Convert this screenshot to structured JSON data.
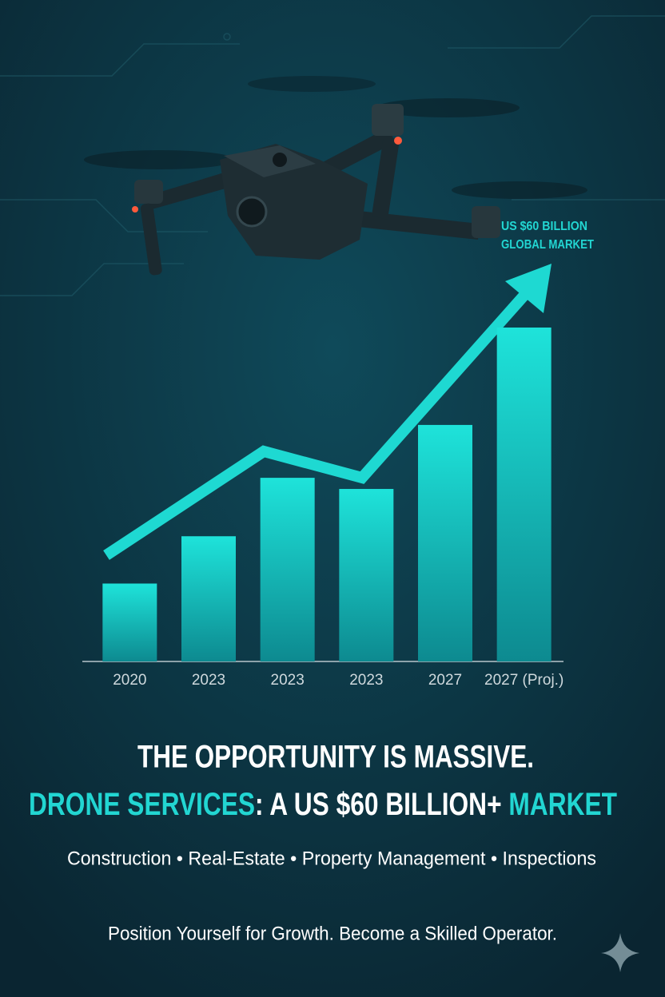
{
  "chart_data": {
    "type": "bar",
    "annotation": [
      "US $60 BILLION",
      "GLOBAL MARKET"
    ],
    "categories": [
      "2020",
      "2023",
      "2023",
      "2023",
      "2027",
      "2027 (Proj.)"
    ],
    "values": [
      14,
      22.5,
      33,
      31,
      42.5,
      60
    ],
    "color": "#1ed9d2",
    "ylim": [
      0,
      60
    ]
  },
  "headline": {
    "line1": "THE OPPORTUNITY IS MASSIVE.",
    "line2": [
      {
        "text": "DRONE SERVICES",
        "color": "#22d6d2"
      },
      {
        "text": ": A US $60 BILLION+ ",
        "color": "#ffffff"
      },
      {
        "text": "MARKET",
        "color": "#22d6d2"
      }
    ]
  },
  "sectors": "Construction • Real-Estate • Property Management • Inspections",
  "tagline": "Position Yourself for Growth. Become a Skilled Operator."
}
